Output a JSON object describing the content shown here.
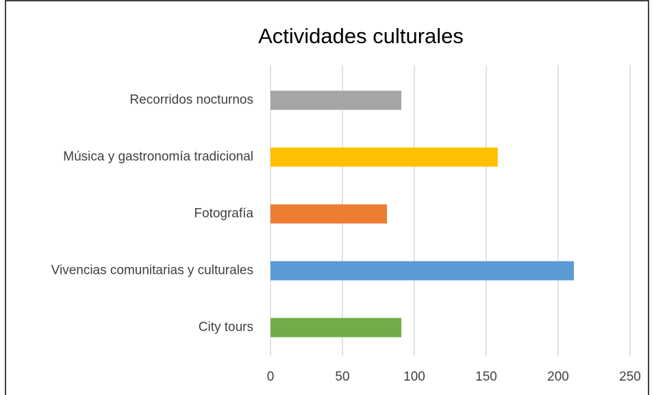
{
  "chart_data": {
    "type": "bar",
    "orientation": "horizontal",
    "title": "Actividades culturales",
    "categories": [
      "Recorridos nocturnos",
      "Música y gastronomía tradicional",
      "Fotografía",
      "Vivencias comunitarias y culturales",
      "City tours"
    ],
    "values": [
      91,
      158,
      81,
      211,
      91
    ],
    "colors": [
      "#a5a5a5",
      "#ffc000",
      "#ed7d31",
      "#5b9bd5",
      "#70ad47"
    ],
    "xlim": [
      0,
      250
    ],
    "xticks": [
      0,
      50,
      100,
      150,
      200,
      250
    ],
    "grid": true
  }
}
